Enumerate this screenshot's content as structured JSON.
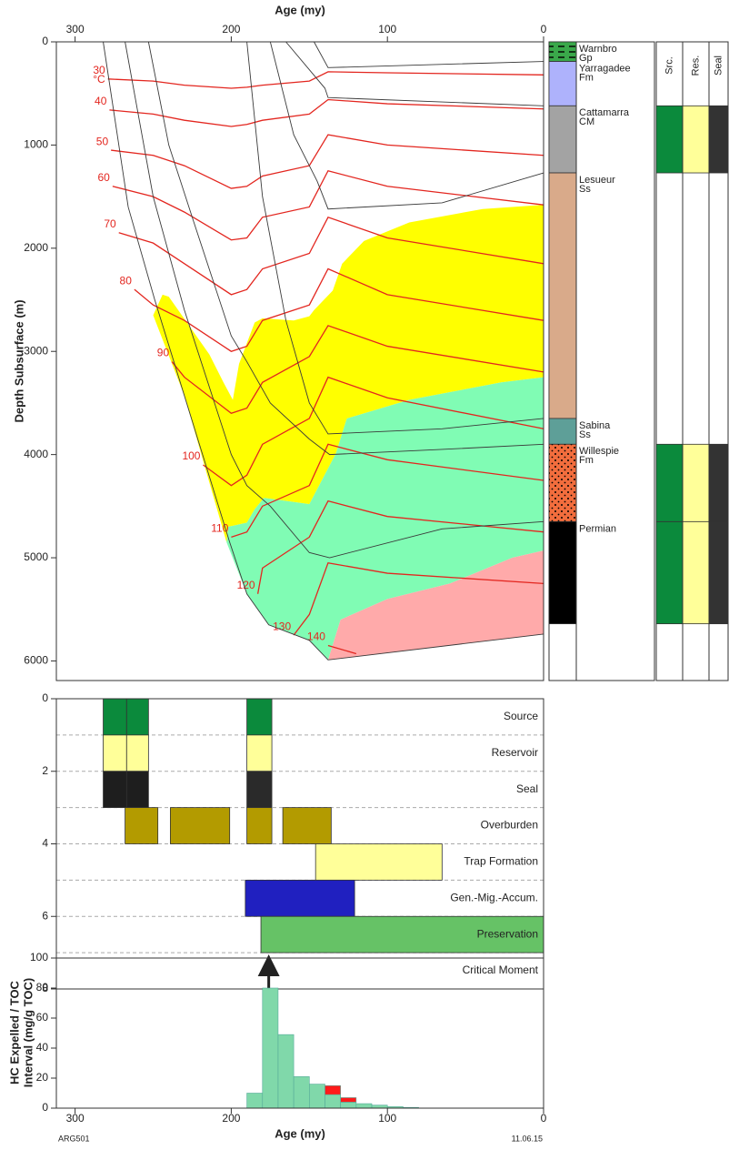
{
  "chart_data": [
    {
      "type": "burial",
      "xlabel": "Age (my)",
      "ylabel": "Depth Subsurface (m)",
      "xlim": [
        312,
        0
      ],
      "xticks": [
        300,
        200,
        100,
        0
      ],
      "ylim": [
        0,
        6190
      ],
      "yticks": [
        0,
        1000,
        2000,
        3000,
        4000,
        5000,
        6000
      ],
      "isotherm_color": "#e3261f",
      "horizon_color": "#3a3a3a",
      "temp_unit": "°C",
      "zones": [
        {
          "color": "#ffff00",
          "ages": [
            250,
            244,
            240,
            214,
            205,
            199,
            195,
            185,
            180,
            160,
            150,
            147,
            135,
            129,
            115,
            86,
            39,
            0,
            0,
            27,
            86,
            126,
            133,
            150,
            179,
            185,
            190,
            202,
            203,
            230
          ],
          "depths": [
            2650,
            2450,
            2470,
            3030,
            3300,
            3470,
            3120,
            2720,
            2680,
            2700,
            2660,
            2600,
            2410,
            2150,
            1930,
            1750,
            1620,
            1580,
            3250,
            3300,
            3470,
            3650,
            3990,
            4480,
            4420,
            4530,
            4660,
            4700,
            4850,
            3430
          ]
        },
        {
          "color": "#80fcb4",
          "ages": [
            203,
            202,
            190,
            185,
            179,
            150,
            133,
            126,
            86,
            27,
            0,
            0,
            20,
            60,
            100,
            130,
            138,
            150,
            176,
            190
          ],
          "depths": [
            4850,
            4700,
            4660,
            4530,
            4420,
            4480,
            3990,
            3650,
            3470,
            3300,
            3250,
            4930,
            5000,
            5250,
            5400,
            5600,
            5990,
            5800,
            5650,
            5350
          ]
        },
        {
          "color": "#ffaaaa",
          "ages": [
            0,
            20,
            60,
            100,
            130,
            138,
            0
          ],
          "depths": [
            4930,
            5000,
            5250,
            5400,
            5600,
            5990,
            5740
          ]
        }
      ],
      "horizons": [
        {
          "ages": [
            282,
            266,
            249,
            201,
            190,
            176,
            150,
            138,
            0
          ],
          "depths": [
            0,
            1600,
            2500,
            4850,
            5350,
            5650,
            5800,
            5990,
            5740
          ]
        },
        {
          "ages": [
            268,
            250,
            230,
            200,
            190,
            175,
            150,
            137,
            65,
            0
          ],
          "depths": [
            0,
            1500,
            2600,
            4000,
            4300,
            4500,
            4950,
            5000,
            4720,
            4650
          ]
        },
        {
          "ages": [
            253,
            240,
            225,
            200,
            190,
            175,
            150,
            137,
            65,
            0
          ],
          "depths": [
            0,
            1000,
            1700,
            2850,
            3100,
            3500,
            3850,
            4000,
            3950,
            3900
          ]
        },
        {
          "ages": [
            190,
            180,
            165,
            150,
            138,
            65,
            0
          ],
          "depths": [
            0,
            1500,
            2700,
            3500,
            3800,
            3750,
            3650
          ]
        },
        {
          "ages": [
            175,
            160,
            145,
            138,
            65,
            0
          ],
          "depths": [
            0,
            900,
            1350,
            1620,
            1560,
            1270
          ]
        },
        {
          "ages": [
            165,
            140,
            138,
            0
          ],
          "depths": [
            0,
            450,
            540,
            620
          ]
        },
        {
          "ages": [
            147,
            138,
            0
          ],
          "depths": [
            0,
            250,
            190
          ]
        }
      ],
      "isotherms": [
        {
          "temperature": 30,
          "ages": [
            279,
            250,
            230,
            200,
            190,
            180,
            150,
            138,
            100,
            0
          ],
          "depths": [
            360,
            380,
            420,
            450,
            440,
            420,
            380,
            290,
            300,
            320
          ]
        },
        {
          "temperature": 40,
          "ages": [
            278,
            250,
            230,
            200,
            190,
            180,
            150,
            138,
            100,
            0
          ],
          "depths": [
            660,
            700,
            760,
            820,
            800,
            760,
            700,
            560,
            600,
            650
          ]
        },
        {
          "temperature": 50,
          "ages": [
            277,
            250,
            230,
            200,
            190,
            180,
            150,
            138,
            100,
            0
          ],
          "depths": [
            1050,
            1100,
            1200,
            1420,
            1400,
            1300,
            1200,
            900,
            1000,
            1100
          ]
        },
        {
          "temperature": 60,
          "ages": [
            276,
            250,
            230,
            200,
            190,
            180,
            150,
            138,
            100,
            0
          ],
          "depths": [
            1400,
            1500,
            1650,
            1920,
            1900,
            1700,
            1600,
            1250,
            1400,
            1580
          ]
        },
        {
          "temperature": 70,
          "ages": [
            272,
            250,
            230,
            200,
            190,
            180,
            150,
            138,
            100,
            0
          ],
          "depths": [
            1850,
            1950,
            2150,
            2450,
            2400,
            2200,
            2050,
            1700,
            1900,
            2150
          ]
        },
        {
          "temperature": 80,
          "ages": [
            262,
            250,
            230,
            200,
            190,
            180,
            150,
            138,
            100,
            0
          ],
          "depths": [
            2400,
            2550,
            2700,
            3000,
            2950,
            2700,
            2550,
            2200,
            2450,
            2700
          ]
        },
        {
          "temperature": 90,
          "ages": [
            238,
            230,
            200,
            190,
            180,
            150,
            138,
            100,
            0
          ],
          "depths": [
            3100,
            3250,
            3600,
            3550,
            3300,
            3050,
            2750,
            2950,
            3200
          ]
        },
        {
          "temperature": 100,
          "ages": [
            218,
            200,
            190,
            180,
            150,
            138,
            100,
            0
          ],
          "depths": [
            4100,
            4300,
            4200,
            3900,
            3650,
            3250,
            3450,
            3750
          ]
        },
        {
          "temperature": 110,
          "ages": [
            200,
            190,
            180,
            150,
            138,
            100,
            0
          ],
          "depths": [
            4800,
            4750,
            4500,
            4300,
            3900,
            4050,
            4250
          ]
        },
        {
          "temperature": 120,
          "ages": [
            183,
            180,
            150,
            138,
            100,
            0
          ],
          "depths": [
            5350,
            5100,
            4800,
            4450,
            4600,
            4750
          ]
        },
        {
          "temperature": 130,
          "ages": [
            160,
            150,
            138,
            100,
            0
          ],
          "depths": [
            5750,
            5550,
            5050,
            5150,
            5250
          ]
        },
        {
          "temperature": 140,
          "ages": [
            138,
            120
          ],
          "depths": [
            5850,
            5930
          ]
        }
      ],
      "lithology": [
        {
          "label": [
            "Warnbro",
            "Gp"
          ],
          "top": 0,
          "bottom": 190,
          "color": "#3aa84a",
          "pattern": "dashes"
        },
        {
          "label": [
            "Yarragadee",
            "Fm"
          ],
          "top": 190,
          "bottom": 620,
          "color": "#aeb2fc"
        },
        {
          "label": [
            "Cattamarra",
            "CM"
          ],
          "top": 620,
          "bottom": 1270,
          "color": "#a3a3a3"
        },
        {
          "label": [
            "Lesueur",
            "Ss"
          ],
          "top": 1270,
          "bottom": 3650,
          "color": "#d9aa8a"
        },
        {
          "label": [
            "Sabina",
            "Ss"
          ],
          "top": 3650,
          "bottom": 3900,
          "color": "#5e9f98"
        },
        {
          "label": [
            "Willespie",
            "Fm"
          ],
          "top": 3900,
          "bottom": 4650,
          "color": "#f26d3d",
          "pattern": "dots"
        },
        {
          "label": [
            "Permian"
          ],
          "top": 4650,
          "bottom": 5640,
          "color": "#000000"
        }
      ],
      "columns": [
        {
          "header": "Src.",
          "color": "#0b8a3c",
          "intervals": [
            [
              620,
              1270
            ],
            [
              3900,
              4650
            ],
            [
              4650,
              5640
            ]
          ]
        },
        {
          "header": "Res.",
          "color": "#ffff99",
          "intervals": [
            [
              620,
              1270
            ],
            [
              3900,
              4650
            ],
            [
              4650,
              5640
            ]
          ]
        },
        {
          "header": "Seal",
          "color": "#333333",
          "intervals": [
            [
              620,
              1270
            ],
            [
              3900,
              4650
            ],
            [
              4650,
              5640
            ]
          ]
        }
      ]
    },
    {
      "type": "events",
      "xlim": [
        312,
        0
      ],
      "ylim": [
        0,
        8
      ],
      "yticks": [
        0,
        2,
        4,
        6,
        8
      ],
      "rows": [
        {
          "label": "Source",
          "bars": [
            {
              "start": 282,
              "end": 267,
              "color": "#0b8a3c"
            },
            {
              "start": 267,
              "end": 253,
              "color": "#0b8a3c"
            },
            {
              "start": 190,
              "end": 174,
              "color": "#0b8a3c"
            }
          ]
        },
        {
          "label": "Reservoir",
          "bars": [
            {
              "start": 282,
              "end": 267,
              "color": "#ffff99"
            },
            {
              "start": 267,
              "end": 253,
              "color": "#ffff99"
            },
            {
              "start": 190,
              "end": 174,
              "color": "#ffff99"
            }
          ]
        },
        {
          "label": "Seal",
          "bars": [
            {
              "start": 282,
              "end": 267,
              "color": "#1e1e1e"
            },
            {
              "start": 267,
              "end": 253,
              "color": "#1e1e1e"
            },
            {
              "start": 190,
              "end": 174,
              "color": "#2a2a2a"
            }
          ]
        },
        {
          "label": "Overburden",
          "bars": [
            {
              "start": 268,
              "end": 247,
              "color": "#b39b00"
            },
            {
              "start": 239,
              "end": 201,
              "color": "#b39b00"
            },
            {
              "start": 190,
              "end": 174,
              "color": "#b39b00"
            },
            {
              "start": 167,
              "end": 136,
              "color": "#b39b00"
            }
          ]
        },
        {
          "label": "Trap Formation",
          "bars": [
            {
              "start": 146,
              "end": 65,
              "color": "#ffff99"
            }
          ]
        },
        {
          "label": "Gen.-Mig.-Accum.",
          "bars": [
            {
              "start": 191,
              "end": 121,
              "color": "#2020c0"
            }
          ]
        },
        {
          "label": "Preservation",
          "bars": [
            {
              "start": 181,
              "end": 0,
              "color": "#66c266"
            }
          ]
        },
        {
          "label": "Critical Moment",
          "marker": 176
        }
      ]
    },
    {
      "type": "histogram",
      "xlabel": "Age (my)",
      "ylabel": [
        "HC Expelled / TOC",
        "Interval (mg/g TOC)"
      ],
      "xlim": [
        312,
        0
      ],
      "xticks": [
        300,
        200,
        100,
        0
      ],
      "ylim": [
        0,
        100
      ],
      "yticks": [
        0,
        20,
        40,
        60,
        80,
        100
      ],
      "bins": [
        190,
        180,
        170,
        160,
        150,
        140,
        130,
        120,
        110,
        100,
        90,
        80
      ],
      "series": [
        {
          "color": "#80d8aa",
          "values": [
            10,
            80,
            49,
            21,
            16,
            9,
            4,
            3,
            2,
            1,
            0.5
          ]
        },
        {
          "color": "#ff1a1a",
          "values": [
            0,
            0,
            0,
            0,
            0,
            6,
            3,
            0,
            0,
            0,
            0
          ]
        }
      ]
    }
  ],
  "footer": {
    "left": "ARG501",
    "right": "11.06.15"
  }
}
